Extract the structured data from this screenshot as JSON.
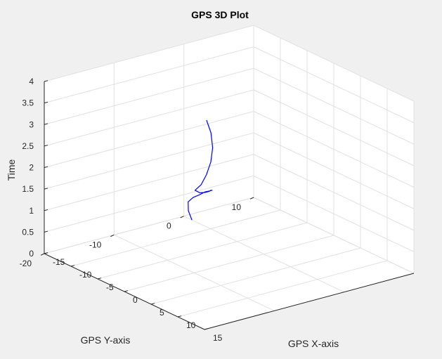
{
  "chart_data": {
    "type": "line",
    "title": "GPS 3D Plot",
    "xlabel": "GPS X-axis",
    "ylabel": "GPS Y-axis",
    "zlabel": "Time",
    "xlim": [
      -15,
      15
    ],
    "ylim": [
      -20,
      10
    ],
    "zlim": [
      0,
      4
    ],
    "xticks": [
      "-15",
      "-10",
      "-5",
      "0",
      "5",
      "10",
      "15"
    ],
    "yticks": [
      "-20",
      "-10",
      "0",
      "10"
    ],
    "zticks": [
      "0",
      "0.5",
      "1",
      "1.5",
      "2",
      "2.5",
      "3",
      "3.5",
      "4"
    ],
    "grid": true,
    "series": [
      {
        "color": "#0000ff",
        "x": [
          -13.5,
          -13.9,
          -12.9,
          -10.4,
          -7.4,
          -4.5,
          -1.7,
          1.0,
          3.1,
          4.9,
          6.3,
          7.3,
          8.0,
          8.1,
          7.0,
          5.2,
          2.8,
          0.0,
          -2.4
        ],
        "y": [
          0.0,
          -0.2,
          -1.0,
          -2.2,
          -3.6,
          -5.0,
          -6.5,
          -8.2,
          -10.0,
          -11.6,
          -13.3,
          -14.8,
          -16.0,
          -15.2,
          -13.6,
          -11.6,
          -9.5,
          -7.6,
          -6.4
        ],
        "z": [
          0.0,
          0.2,
          0.5,
          0.8,
          1.1,
          1.4,
          1.65,
          1.9,
          2.1,
          2.25,
          2.38,
          2.5,
          2.65,
          2.75,
          2.85,
          2.95,
          3.05,
          3.15,
          3.25
        ]
      }
    ]
  }
}
